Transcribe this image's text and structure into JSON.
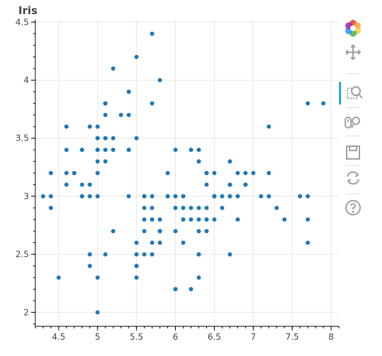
{
  "chart_data": {
    "type": "scatter",
    "title": "Iris",
    "xlabel": "",
    "ylabel": "",
    "xlim": [
      4.2,
      8.1
    ],
    "ylim": [
      1.88,
      4.52
    ],
    "grid": true,
    "x_ticks": [
      4.5,
      5,
      5.5,
      6,
      6.5,
      7,
      7.5,
      8
    ],
    "x_tick_labels": [
      "4.5",
      "5",
      "5.5",
      "6",
      "6.5",
      "7",
      "7.5",
      "8"
    ],
    "y_ticks": [
      2,
      2.5,
      3,
      3.5,
      4,
      4.5
    ],
    "y_tick_labels": [
      "2",
      "2.5",
      "3",
      "3.5",
      "4",
      "4.5"
    ],
    "point_color": "#1f77b4",
    "points": [
      [
        5.1,
        3.5
      ],
      [
        4.9,
        3.0
      ],
      [
        4.7,
        3.2
      ],
      [
        4.6,
        3.1
      ],
      [
        5.0,
        3.6
      ],
      [
        5.4,
        3.9
      ],
      [
        4.6,
        3.4
      ],
      [
        5.0,
        3.4
      ],
      [
        4.4,
        2.9
      ],
      [
        4.9,
        3.1
      ],
      [
        5.4,
        3.7
      ],
      [
        4.8,
        3.4
      ],
      [
        4.8,
        3.0
      ],
      [
        4.3,
        3.0
      ],
      [
        5.8,
        4.0
      ],
      [
        5.7,
        4.4
      ],
      [
        5.4,
        3.9
      ],
      [
        5.1,
        3.5
      ],
      [
        5.7,
        3.8
      ],
      [
        5.1,
        3.8
      ],
      [
        5.4,
        3.4
      ],
      [
        5.1,
        3.7
      ],
      [
        4.6,
        3.6
      ],
      [
        5.1,
        3.3
      ],
      [
        4.8,
        3.4
      ],
      [
        5.0,
        3.0
      ],
      [
        5.0,
        3.4
      ],
      [
        5.2,
        3.5
      ],
      [
        5.2,
        3.4
      ],
      [
        4.7,
        3.2
      ],
      [
        4.8,
        3.1
      ],
      [
        5.4,
        3.4
      ],
      [
        5.2,
        4.1
      ],
      [
        5.5,
        4.2
      ],
      [
        4.9,
        3.1
      ],
      [
        5.0,
        3.2
      ],
      [
        5.5,
        3.5
      ],
      [
        4.9,
        3.6
      ],
      [
        4.4,
        3.0
      ],
      [
        5.1,
        3.4
      ],
      [
        5.0,
        3.5
      ],
      [
        4.5,
        2.3
      ],
      [
        4.4,
        3.2
      ],
      [
        5.0,
        3.5
      ],
      [
        5.1,
        3.8
      ],
      [
        4.8,
        3.0
      ],
      [
        5.1,
        3.8
      ],
      [
        4.6,
        3.2
      ],
      [
        5.3,
        3.7
      ],
      [
        5.0,
        3.3
      ],
      [
        7.0,
        3.2
      ],
      [
        6.4,
        3.2
      ],
      [
        6.9,
        3.1
      ],
      [
        5.5,
        2.3
      ],
      [
        6.5,
        2.8
      ],
      [
        5.7,
        2.8
      ],
      [
        6.3,
        3.3
      ],
      [
        4.9,
        2.4
      ],
      [
        6.6,
        2.9
      ],
      [
        5.2,
        2.7
      ],
      [
        5.0,
        2.0
      ],
      [
        5.9,
        3.0
      ],
      [
        6.0,
        2.2
      ],
      [
        6.1,
        2.9
      ],
      [
        5.6,
        2.9
      ],
      [
        6.7,
        3.1
      ],
      [
        5.6,
        3.0
      ],
      [
        5.8,
        2.7
      ],
      [
        6.2,
        2.2
      ],
      [
        5.6,
        2.5
      ],
      [
        5.9,
        3.2
      ],
      [
        6.1,
        2.8
      ],
      [
        6.3,
        2.5
      ],
      [
        6.1,
        2.8
      ],
      [
        6.4,
        2.9
      ],
      [
        6.6,
        3.0
      ],
      [
        6.8,
        2.8
      ],
      [
        6.7,
        3.0
      ],
      [
        6.0,
        2.9
      ],
      [
        5.7,
        2.6
      ],
      [
        5.5,
        2.4
      ],
      [
        5.5,
        2.4
      ],
      [
        5.8,
        2.7
      ],
      [
        6.0,
        2.7
      ],
      [
        5.4,
        3.0
      ],
      [
        6.0,
        3.4
      ],
      [
        6.7,
        3.1
      ],
      [
        6.3,
        2.3
      ],
      [
        5.6,
        3.0
      ],
      [
        5.5,
        2.5
      ],
      [
        5.5,
        2.6
      ],
      [
        6.1,
        3.0
      ],
      [
        5.8,
        2.6
      ],
      [
        5.0,
        2.3
      ],
      [
        5.6,
        2.7
      ],
      [
        5.7,
        3.0
      ],
      [
        5.7,
        2.9
      ],
      [
        6.2,
        2.9
      ],
      [
        5.1,
        2.5
      ],
      [
        5.7,
        2.8
      ],
      [
        6.3,
        3.3
      ],
      [
        5.8,
        2.7
      ],
      [
        7.1,
        3.0
      ],
      [
        6.3,
        2.9
      ],
      [
        6.5,
        3.0
      ],
      [
        7.6,
        3.0
      ],
      [
        4.9,
        2.5
      ],
      [
        7.3,
        2.9
      ],
      [
        6.7,
        2.5
      ],
      [
        7.2,
        3.6
      ],
      [
        6.5,
        3.2
      ],
      [
        6.4,
        2.7
      ],
      [
        6.8,
        3.0
      ],
      [
        5.7,
        2.5
      ],
      [
        5.8,
        2.8
      ],
      [
        6.4,
        3.2
      ],
      [
        6.5,
        3.0
      ],
      [
        7.7,
        3.8
      ],
      [
        7.7,
        2.6
      ],
      [
        6.0,
        2.2
      ],
      [
        6.9,
        3.2
      ],
      [
        5.6,
        2.8
      ],
      [
        7.7,
        2.8
      ],
      [
        6.3,
        2.7
      ],
      [
        6.7,
        3.3
      ],
      [
        7.2,
        3.2
      ],
      [
        6.2,
        2.8
      ],
      [
        6.1,
        3.0
      ],
      [
        6.4,
        2.8
      ],
      [
        7.2,
        3.0
      ],
      [
        7.4,
        2.8
      ],
      [
        7.9,
        3.8
      ],
      [
        6.4,
        2.8
      ],
      [
        6.3,
        2.8
      ],
      [
        6.1,
        2.6
      ],
      [
        7.7,
        3.0
      ],
      [
        6.3,
        3.4
      ],
      [
        6.4,
        3.1
      ],
      [
        6.0,
        3.0
      ],
      [
        6.9,
        3.1
      ],
      [
        6.7,
        3.1
      ],
      [
        6.9,
        3.1
      ],
      [
        5.8,
        2.7
      ],
      [
        6.8,
        3.2
      ],
      [
        6.7,
        3.3
      ],
      [
        6.7,
        3.0
      ],
      [
        6.3,
        2.5
      ],
      [
        6.5,
        3.0
      ],
      [
        6.2,
        3.4
      ],
      [
        5.9,
        3.0
      ]
    ]
  },
  "toolbar": {
    "tools": [
      {
        "name": "bokeh-logo-icon"
      },
      {
        "name": "pan-tool-icon"
      },
      {
        "name": "box-zoom-tool-icon",
        "active": true
      },
      {
        "name": "wheel-zoom-tool-icon"
      },
      {
        "name": "save-tool-icon"
      },
      {
        "name": "reset-tool-icon"
      },
      {
        "name": "help-tool-icon"
      }
    ],
    "icon_color": "#a0a0a0",
    "active_color": "#26aae1"
  }
}
